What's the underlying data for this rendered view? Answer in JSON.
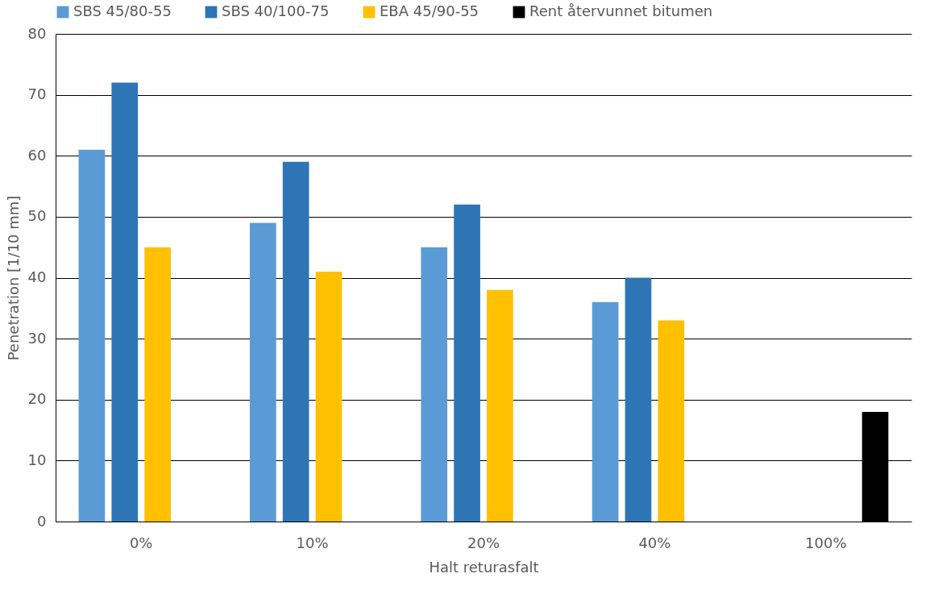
{
  "chart_data": {
    "type": "bar",
    "xlabel": "Halt returasfalt",
    "ylabel": "Penetration [1/10 mm]",
    "categories": [
      "0%",
      "10%",
      "20%",
      "40%",
      "100%"
    ],
    "series": [
      {
        "name": "SBS 45/80-55",
        "color": "#5b9bd5",
        "values": [
          61,
          49,
          45,
          36,
          null
        ]
      },
      {
        "name": "SBS 40/100-75",
        "color": "#2e75b6",
        "values": [
          72,
          59,
          52,
          40,
          null
        ]
      },
      {
        "name": "EBA 45/90-55",
        "color": "#ffc000",
        "values": [
          45,
          41,
          38,
          33,
          null
        ]
      },
      {
        "name": "Rent återvunnet bitumen",
        "color": "#000000",
        "values": [
          null,
          null,
          null,
          null,
          18
        ]
      }
    ],
    "ylim": [
      0,
      80
    ],
    "yticks": [
      0,
      10,
      20,
      30,
      40,
      50,
      60,
      70,
      80
    ],
    "grid": "y",
    "legend": "top"
  }
}
